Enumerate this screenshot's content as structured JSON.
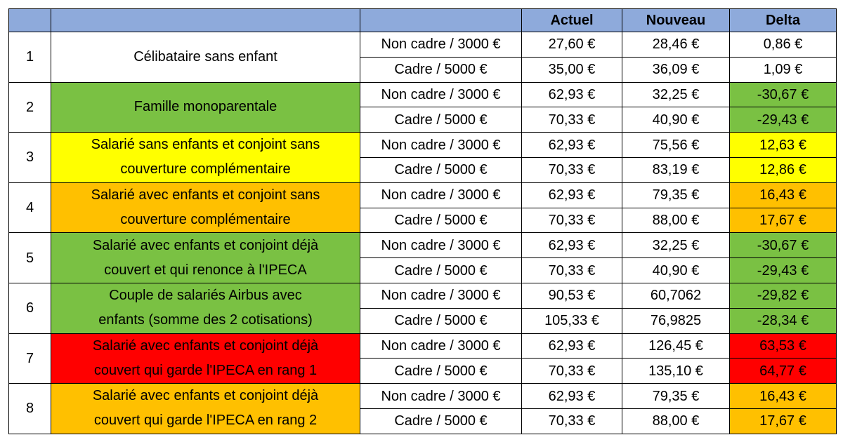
{
  "table": {
    "header": [
      "Actuel",
      "Nouveau",
      "Delta"
    ],
    "groups": [
      {
        "number": "1",
        "description": [
          "Célibataire sans enfant"
        ],
        "color": "#ffffff",
        "delta_color": "#ffffff",
        "rows": [
          {
            "profile": "Non cadre / 3000 €",
            "actuel": "27,60 €",
            "nouveau": "28,46 €",
            "delta": "0,86 €"
          },
          {
            "profile": "Cadre / 5000 €",
            "actuel": "35,00 €",
            "nouveau": "36,09 €",
            "delta": "1,09 €"
          }
        ]
      },
      {
        "number": "2",
        "description": [
          "Famille monoparentale"
        ],
        "color": "#7ac143",
        "delta_color": "#7ac143",
        "rows": [
          {
            "profile": "Non cadre / 3000 €",
            "actuel": "62,93 €",
            "nouveau": "32,25 €",
            "delta": "-30,67 €"
          },
          {
            "profile": "Cadre / 5000 €",
            "actuel": "70,33 €",
            "nouveau": "40,90 €",
            "delta": "-29,43 €"
          }
        ]
      },
      {
        "number": "3",
        "description": [
          "Salarié sans enfants et conjoint sans",
          "couverture complémentaire"
        ],
        "color": "#ffff00",
        "delta_color": "#ffff00",
        "rows": [
          {
            "profile": "Non cadre / 3000 €",
            "actuel": "62,93 €",
            "nouveau": "75,56 €",
            "delta": "12,63 €"
          },
          {
            "profile": "Cadre / 5000 €",
            "actuel": "70,33 €",
            "nouveau": "83,19 €",
            "delta": "12,86 €"
          }
        ]
      },
      {
        "number": "4",
        "description": [
          "Salarié avec enfants et conjoint sans",
          "couverture complémentaire"
        ],
        "color": "#ffc000",
        "delta_color": "#ffc000",
        "rows": [
          {
            "profile": "Non cadre / 3000 €",
            "actuel": "62,93 €",
            "nouveau": "79,35 €",
            "delta": "16,43 €"
          },
          {
            "profile": "Cadre / 5000 €",
            "actuel": "70,33 €",
            "nouveau": "88,00 €",
            "delta": "17,67 €"
          }
        ]
      },
      {
        "number": "5",
        "description": [
          "Salarié avec enfants et conjoint déjà",
          "couvert et qui renonce à l'IPECA"
        ],
        "color": "#7ac143",
        "delta_color": "#7ac143",
        "rows": [
          {
            "profile": "Non cadre / 3000 €",
            "actuel": "62,93 €",
            "nouveau": "32,25 €",
            "delta": "-30,67 €"
          },
          {
            "profile": "Cadre / 5000 €",
            "actuel": "70,33 €",
            "nouveau": "40,90 €",
            "delta": "-29,43 €"
          }
        ]
      },
      {
        "number": "6",
        "description": [
          "Couple de salariés Airbus avec",
          "enfants (somme des 2 cotisations)"
        ],
        "color": "#7ac143",
        "delta_color": "#7ac143",
        "rows": [
          {
            "profile": "Non cadre / 3000 €",
            "actuel": "90,53 €",
            "nouveau": "60,7062",
            "delta": "-29,82 €"
          },
          {
            "profile": "Cadre / 5000 €",
            "actuel": "105,33 €",
            "nouveau": "76,9825",
            "delta": "-28,34 €"
          }
        ]
      },
      {
        "number": "7",
        "description": [
          "Salarié avec enfants et conjoint déjà",
          "couvert qui garde l'IPECA en rang 1"
        ],
        "color": "#ff0000",
        "delta_color": "#ff0000",
        "rows": [
          {
            "profile": "Non cadre / 3000 €",
            "actuel": "62,93 €",
            "nouveau": "126,45 €",
            "delta": "63,53 €"
          },
          {
            "profile": "Cadre / 5000 €",
            "actuel": "70,33 €",
            "nouveau": "135,10 €",
            "delta": "64,77 €"
          }
        ]
      },
      {
        "number": "8",
        "description": [
          "Salarié avec enfants et conjoint déjà",
          "couvert qui garde l'IPECA en rang 2"
        ],
        "color": "#ffc000",
        "delta_color": "#ffc000",
        "rows": [
          {
            "profile": "Non cadre / 3000 €",
            "actuel": "62,93 €",
            "nouveau": "79,35 €",
            "delta": "16,43 €"
          },
          {
            "profile": "Cadre / 5000 €",
            "actuel": "70,33 €",
            "nouveau": "88,00 €",
            "delta": "17,67 €"
          }
        ]
      }
    ]
  }
}
